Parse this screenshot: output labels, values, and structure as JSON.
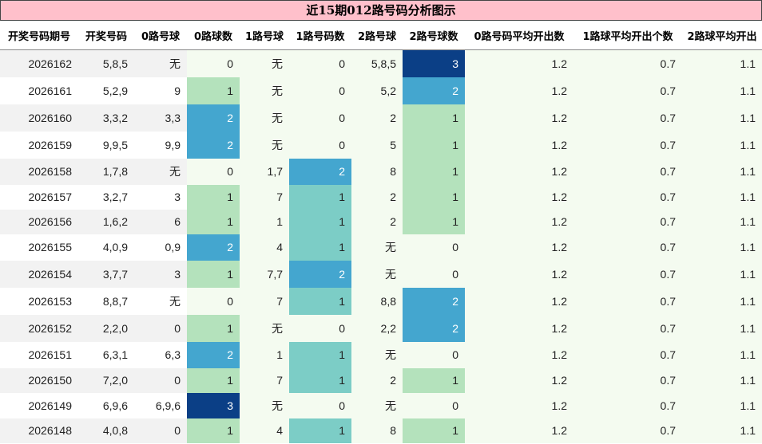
{
  "title": "近15期012路号码分析图示",
  "headers": [
    "开奖号码期号",
    "开奖号码",
    "0路号球",
    "0路球数",
    "1路号球",
    "1路号码数",
    "2路号球",
    "2路号球数",
    "0路号码平均开出数",
    "1路球平均开出个数",
    "2路球平均开出"
  ],
  "rows": [
    {
      "period": "2026162",
      "numbers": "5,8,5",
      "r0_balls": "无",
      "r0_count": "0",
      "r1_balls": "无",
      "r1_count": "0",
      "r2_balls": "5,8,5",
      "r2_count": "3",
      "avg0": "1.2",
      "avg1": "0.7",
      "avg2": "1.1"
    },
    {
      "period": "2026161",
      "numbers": "5,2,9",
      "r0_balls": "9",
      "r0_count": "1",
      "r1_balls": "无",
      "r1_count": "0",
      "r2_balls": "5,2",
      "r2_count": "2",
      "avg0": "1.2",
      "avg1": "0.7",
      "avg2": "1.1"
    },
    {
      "period": "2026160",
      "numbers": "3,3,2",
      "r0_balls": "3,3",
      "r0_count": "2",
      "r1_balls": "无",
      "r1_count": "0",
      "r2_balls": "2",
      "r2_count": "1",
      "avg0": "1.2",
      "avg1": "0.7",
      "avg2": "1.1"
    },
    {
      "period": "2026159",
      "numbers": "9,9,5",
      "r0_balls": "9,9",
      "r0_count": "2",
      "r1_balls": "无",
      "r1_count": "0",
      "r2_balls": "5",
      "r2_count": "1",
      "avg0": "1.2",
      "avg1": "0.7",
      "avg2": "1.1"
    },
    {
      "period": "2026158",
      "numbers": "1,7,8",
      "r0_balls": "无",
      "r0_count": "0",
      "r1_balls": "1,7",
      "r1_count": "2",
      "r2_balls": "8",
      "r2_count": "1",
      "avg0": "1.2",
      "avg1": "0.7",
      "avg2": "1.1"
    },
    {
      "period": "2026157",
      "numbers": "3,2,7",
      "r0_balls": "3",
      "r0_count": "1",
      "r1_balls": "7",
      "r1_count": "1",
      "r2_balls": "2",
      "r2_count": "1",
      "avg0": "1.2",
      "avg1": "0.7",
      "avg2": "1.1"
    },
    {
      "period": "2026156",
      "numbers": "1,6,2",
      "r0_balls": "6",
      "r0_count": "1",
      "r1_balls": "1",
      "r1_count": "1",
      "r2_balls": "2",
      "r2_count": "1",
      "avg0": "1.2",
      "avg1": "0.7",
      "avg2": "1.1"
    },
    {
      "period": "2026155",
      "numbers": "4,0,9",
      "r0_balls": "0,9",
      "r0_count": "2",
      "r1_balls": "4",
      "r1_count": "1",
      "r2_balls": "无",
      "r2_count": "0",
      "avg0": "1.2",
      "avg1": "0.7",
      "avg2": "1.1"
    },
    {
      "period": "2026154",
      "numbers": "3,7,7",
      "r0_balls": "3",
      "r0_count": "1",
      "r1_balls": "7,7",
      "r1_count": "2",
      "r2_balls": "无",
      "r2_count": "0",
      "avg0": "1.2",
      "avg1": "0.7",
      "avg2": "1.1"
    },
    {
      "period": "2026153",
      "numbers": "8,8,7",
      "r0_balls": "无",
      "r0_count": "0",
      "r1_balls": "7",
      "r1_count": "1",
      "r2_balls": "8,8",
      "r2_count": "2",
      "avg0": "1.2",
      "avg1": "0.7",
      "avg2": "1.1"
    },
    {
      "period": "2026152",
      "numbers": "2,2,0",
      "r0_balls": "0",
      "r0_count": "1",
      "r1_balls": "无",
      "r1_count": "0",
      "r2_balls": "2,2",
      "r2_count": "2",
      "avg0": "1.2",
      "avg1": "0.7",
      "avg2": "1.1"
    },
    {
      "period": "2026151",
      "numbers": "6,3,1",
      "r0_balls": "6,3",
      "r0_count": "2",
      "r1_balls": "1",
      "r1_count": "1",
      "r2_balls": "无",
      "r2_count": "0",
      "avg0": "1.2",
      "avg1": "0.7",
      "avg2": "1.1"
    },
    {
      "period": "2026150",
      "numbers": "7,2,0",
      "r0_balls": "0",
      "r0_count": "1",
      "r1_balls": "7",
      "r1_count": "1",
      "r2_balls": "2",
      "r2_count": "1",
      "avg0": "1.2",
      "avg1": "0.7",
      "avg2": "1.1"
    },
    {
      "period": "2026149",
      "numbers": "6,9,6",
      "r0_balls": "6,9,6",
      "r0_count": "3",
      "r1_balls": "无",
      "r1_count": "0",
      "r2_balls": "无",
      "r2_count": "0",
      "avg0": "1.2",
      "avg1": "0.7",
      "avg2": "1.1"
    },
    {
      "period": "2026148",
      "numbers": "4,0,8",
      "r0_balls": "0",
      "r0_count": "1",
      "r1_balls": "4",
      "r1_count": "1",
      "r2_balls": "8",
      "r2_count": "1",
      "avg0": "1.2",
      "avg1": "0.7",
      "avg2": "1.1"
    }
  ],
  "colors": {
    "title_bg": "#ffc0cb",
    "count_0": "#f4fbf0",
    "count_1": "#b4e2bc",
    "count_2": "#44a6cf",
    "count_3": "#0b3f86",
    "route1_count_1": "#7ccdc6"
  }
}
